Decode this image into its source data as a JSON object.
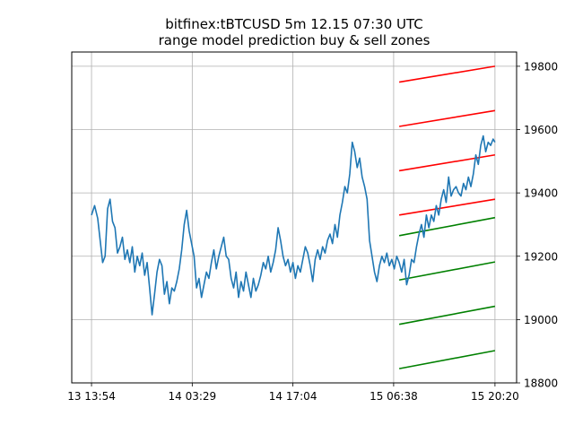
{
  "chart_data": {
    "type": "line",
    "title": "bitfinex:tBTCUSD 5m 12.15 07:30 UTC",
    "subtitle": "range model prediction buy & sell zones",
    "xlabel": "",
    "ylabel": "",
    "x_axis": {
      "ticks": [
        "13 13:54",
        "14 03:29",
        "14 17:04",
        "15 06:38",
        "15 20:20"
      ],
      "tick_index": [
        0,
        163,
        326,
        489,
        653
      ],
      "range_index": [
        -32,
        688
      ]
    },
    "y_axis": {
      "side": "right",
      "ticks": [
        18800,
        19000,
        19200,
        19400,
        19600,
        19800
      ],
      "ylim": [
        18800,
        19845
      ]
    },
    "grid": true,
    "colors": {
      "price": "#1f77b4",
      "sell": "#ff0000",
      "buy": "#008000",
      "grid": "#b0b0b0"
    },
    "price_series": {
      "name": "",
      "points": [
        [
          0,
          19330
        ],
        [
          5,
          19360
        ],
        [
          10,
          19320
        ],
        [
          14,
          19250
        ],
        [
          18,
          19180
        ],
        [
          22,
          19200
        ],
        [
          26,
          19350
        ],
        [
          30,
          19380
        ],
        [
          34,
          19310
        ],
        [
          38,
          19290
        ],
        [
          42,
          19210
        ],
        [
          46,
          19230
        ],
        [
          50,
          19260
        ],
        [
          54,
          19190
        ],
        [
          58,
          19220
        ],
        [
          62,
          19180
        ],
        [
          66,
          19230
        ],
        [
          70,
          19150
        ],
        [
          74,
          19200
        ],
        [
          78,
          19170
        ],
        [
          82,
          19210
        ],
        [
          86,
          19140
        ],
        [
          90,
          19180
        ],
        [
          94,
          19100
        ],
        [
          98,
          19015
        ],
        [
          102,
          19080
        ],
        [
          106,
          19150
        ],
        [
          110,
          19190
        ],
        [
          114,
          19170
        ],
        [
          118,
          19080
        ],
        [
          122,
          19120
        ],
        [
          126,
          19050
        ],
        [
          130,
          19100
        ],
        [
          134,
          19090
        ],
        [
          138,
          19120
        ],
        [
          142,
          19160
        ],
        [
          146,
          19220
        ],
        [
          150,
          19300
        ],
        [
          154,
          19345
        ],
        [
          158,
          19280
        ],
        [
          162,
          19240
        ],
        [
          166,
          19200
        ],
        [
          170,
          19100
        ],
        [
          174,
          19130
        ],
        [
          178,
          19070
        ],
        [
          182,
          19110
        ],
        [
          186,
          19150
        ],
        [
          190,
          19130
        ],
        [
          194,
          19180
        ],
        [
          198,
          19220
        ],
        [
          202,
          19160
        ],
        [
          206,
          19200
        ],
        [
          210,
          19230
        ],
        [
          214,
          19260
        ],
        [
          218,
          19200
        ],
        [
          222,
          19190
        ],
        [
          226,
          19130
        ],
        [
          230,
          19100
        ],
        [
          234,
          19150
        ],
        [
          238,
          19070
        ],
        [
          242,
          19120
        ],
        [
          246,
          19090
        ],
        [
          250,
          19150
        ],
        [
          254,
          19110
        ],
        [
          258,
          19070
        ],
        [
          262,
          19130
        ],
        [
          266,
          19090
        ],
        [
          270,
          19110
        ],
        [
          274,
          19140
        ],
        [
          278,
          19180
        ],
        [
          282,
          19160
        ],
        [
          286,
          19200
        ],
        [
          290,
          19150
        ],
        [
          294,
          19180
        ],
        [
          298,
          19220
        ],
        [
          302,
          19290
        ],
        [
          306,
          19250
        ],
        [
          310,
          19200
        ],
        [
          314,
          19170
        ],
        [
          318,
          19190
        ],
        [
          322,
          19150
        ],
        [
          326,
          19180
        ],
        [
          330,
          19130
        ],
        [
          334,
          19170
        ],
        [
          338,
          19150
        ],
        [
          342,
          19190
        ],
        [
          346,
          19230
        ],
        [
          350,
          19210
        ],
        [
          354,
          19170
        ],
        [
          358,
          19120
        ],
        [
          362,
          19190
        ],
        [
          366,
          19220
        ],
        [
          370,
          19190
        ],
        [
          374,
          19230
        ],
        [
          378,
          19210
        ],
        [
          382,
          19250
        ],
        [
          386,
          19270
        ],
        [
          390,
          19240
        ],
        [
          394,
          19300
        ],
        [
          398,
          19260
        ],
        [
          402,
          19330
        ],
        [
          406,
          19370
        ],
        [
          410,
          19420
        ],
        [
          414,
          19400
        ],
        [
          418,
          19460
        ],
        [
          422,
          19560
        ],
        [
          426,
          19530
        ],
        [
          430,
          19480
        ],
        [
          434,
          19510
        ],
        [
          438,
          19450
        ],
        [
          442,
          19420
        ],
        [
          446,
          19380
        ],
        [
          450,
          19250
        ],
        [
          454,
          19200
        ],
        [
          458,
          19150
        ],
        [
          462,
          19120
        ],
        [
          466,
          19170
        ],
        [
          470,
          19200
        ],
        [
          474,
          19180
        ],
        [
          478,
          19210
        ],
        [
          482,
          19170
        ],
        [
          486,
          19190
        ],
        [
          490,
          19160
        ],
        [
          494,
          19200
        ],
        [
          498,
          19180
        ],
        [
          502,
          19150
        ],
        [
          506,
          19190
        ],
        [
          510,
          19110
        ],
        [
          514,
          19140
        ],
        [
          518,
          19190
        ],
        [
          522,
          19180
        ],
        [
          526,
          19230
        ],
        [
          530,
          19270
        ],
        [
          534,
          19300
        ],
        [
          538,
          19260
        ],
        [
          542,
          19330
        ],
        [
          546,
          19290
        ],
        [
          550,
          19330
        ],
        [
          554,
          19310
        ],
        [
          558,
          19360
        ],
        [
          562,
          19330
        ],
        [
          566,
          19380
        ],
        [
          570,
          19410
        ],
        [
          574,
          19370
        ],
        [
          578,
          19450
        ],
        [
          582,
          19390
        ],
        [
          586,
          19410
        ],
        [
          590,
          19420
        ],
        [
          594,
          19400
        ],
        [
          598,
          19390
        ],
        [
          602,
          19430
        ],
        [
          606,
          19410
        ],
        [
          610,
          19450
        ],
        [
          614,
          19420
        ],
        [
          618,
          19460
        ],
        [
          622,
          19520
        ],
        [
          626,
          19490
        ],
        [
          630,
          19550
        ],
        [
          634,
          19580
        ],
        [
          638,
          19530
        ],
        [
          642,
          19560
        ],
        [
          646,
          19550
        ],
        [
          650,
          19570
        ],
        [
          653,
          19560
        ]
      ]
    },
    "sell_zones": [
      {
        "x_start": 498,
        "x_end": 653,
        "y_start": 19330,
        "y_end": 19380
      },
      {
        "x_start": 498,
        "x_end": 653,
        "y_start": 19470,
        "y_end": 19520
      },
      {
        "x_start": 498,
        "x_end": 653,
        "y_start": 19610,
        "y_end": 19660
      },
      {
        "x_start": 498,
        "x_end": 653,
        "y_start": 19750,
        "y_end": 19800
      }
    ],
    "buy_zones": [
      {
        "x_start": 498,
        "x_end": 653,
        "y_start": 19265,
        "y_end": 19322
      },
      {
        "x_start": 498,
        "x_end": 653,
        "y_start": 19125,
        "y_end": 19182
      },
      {
        "x_start": 498,
        "x_end": 653,
        "y_start": 18985,
        "y_end": 19042
      },
      {
        "x_start": 498,
        "x_end": 653,
        "y_start": 18845,
        "y_end": 18902
      }
    ]
  }
}
